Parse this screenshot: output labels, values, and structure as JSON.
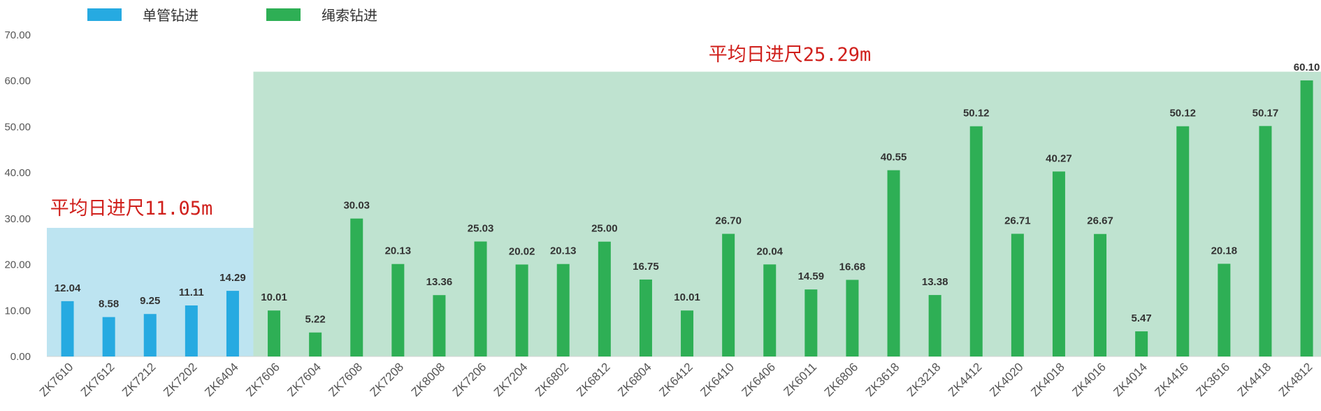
{
  "colors": {
    "single": "#26aae1",
    "rope": "#2eaf55",
    "single_zone": "#bde4f1",
    "rope_zone": "#bfe3d0",
    "avg_text": "#d0201c",
    "axis_text": "#555555",
    "value_text": "#333333"
  },
  "legend": [
    {
      "label": "单管钻进",
      "color": "#26aae1"
    },
    {
      "label": "绳索钻进",
      "color": "#2eaf55"
    }
  ],
  "averages": {
    "single": {
      "label": "平均日进尺11.05m",
      "value": 11.05
    },
    "rope": {
      "label": "平均日进尺25.29m",
      "value": 25.29
    }
  },
  "chart_data": {
    "type": "bar",
    "categories": [
      "ZK7610",
      "ZK7612",
      "ZK7212",
      "ZK7202",
      "ZK6404",
      "ZK7606",
      "ZK7604",
      "ZK7608",
      "ZK7208",
      "ZK8008",
      "ZK7206",
      "ZK7204",
      "ZK6802",
      "ZK6812",
      "ZK6804",
      "ZK6412",
      "ZK6410",
      "ZK6406",
      "ZK6011",
      "ZK6806",
      "ZK3618",
      "ZK3218",
      "ZK4412",
      "ZK4020",
      "ZK4018",
      "ZK4016",
      "ZK4014",
      "ZK4416",
      "ZK3616",
      "ZK4418",
      "ZK4812"
    ],
    "values": [
      12.04,
      8.58,
      9.25,
      11.11,
      14.29,
      10.01,
      5.22,
      30.03,
      20.13,
      13.36,
      25.03,
      20.02,
      20.13,
      25.0,
      16.75,
      10.01,
      26.7,
      20.04,
      14.59,
      16.68,
      40.55,
      13.38,
      50.12,
      26.71,
      40.27,
      26.67,
      5.47,
      50.12,
      20.18,
      50.17,
      60.1
    ],
    "value_labels": [
      "12.04",
      "8.58",
      "9.25",
      "11.11",
      "14.29",
      "10.01",
      "5.22",
      "30.03",
      "20.13",
      "13.36",
      "25.03",
      "20.02",
      "20.13",
      "25.00",
      "16.75",
      "10.01",
      "26.70",
      "20.04",
      "14.59",
      "16.68",
      "40.55",
      "13.38",
      "50.12",
      "26.71",
      "40.27",
      "26.67",
      "5.47",
      "50.12",
      "20.18",
      "50.17",
      "60.10"
    ],
    "groups": [
      "单管钻进",
      "单管钻进",
      "单管钻进",
      "单管钻进",
      "单管钻进",
      "绳索钻进",
      "绳索钻进",
      "绳索钻进",
      "绳索钻进",
      "绳索钻进",
      "绳索钻进",
      "绳索钻进",
      "绳索钻进",
      "绳索钻进",
      "绳索钻进",
      "绳索钻进",
      "绳索钻进",
      "绳索钻进",
      "绳索钻进",
      "绳索钻进",
      "绳索钻进",
      "绳索钻进",
      "绳索钻进",
      "绳索钻进",
      "绳索钻进",
      "绳索钻进",
      "绳索钻进",
      "绳索钻进",
      "绳索钻进",
      "绳索钻进",
      "绳索钻进"
    ],
    "y_ticks": [
      "0.00",
      "10.00",
      "20.00",
      "30.00",
      "40.00",
      "50.00",
      "60.00",
      "70.00"
    ],
    "ylim": [
      0,
      70
    ],
    "zones": [
      {
        "group": "单管钻进",
        "first": 0,
        "last": 4,
        "top": 28
      },
      {
        "group": "绳索钻进",
        "first": 5,
        "last": 30,
        "top": 62
      }
    ],
    "grid": false,
    "legend_position": "top-left"
  }
}
